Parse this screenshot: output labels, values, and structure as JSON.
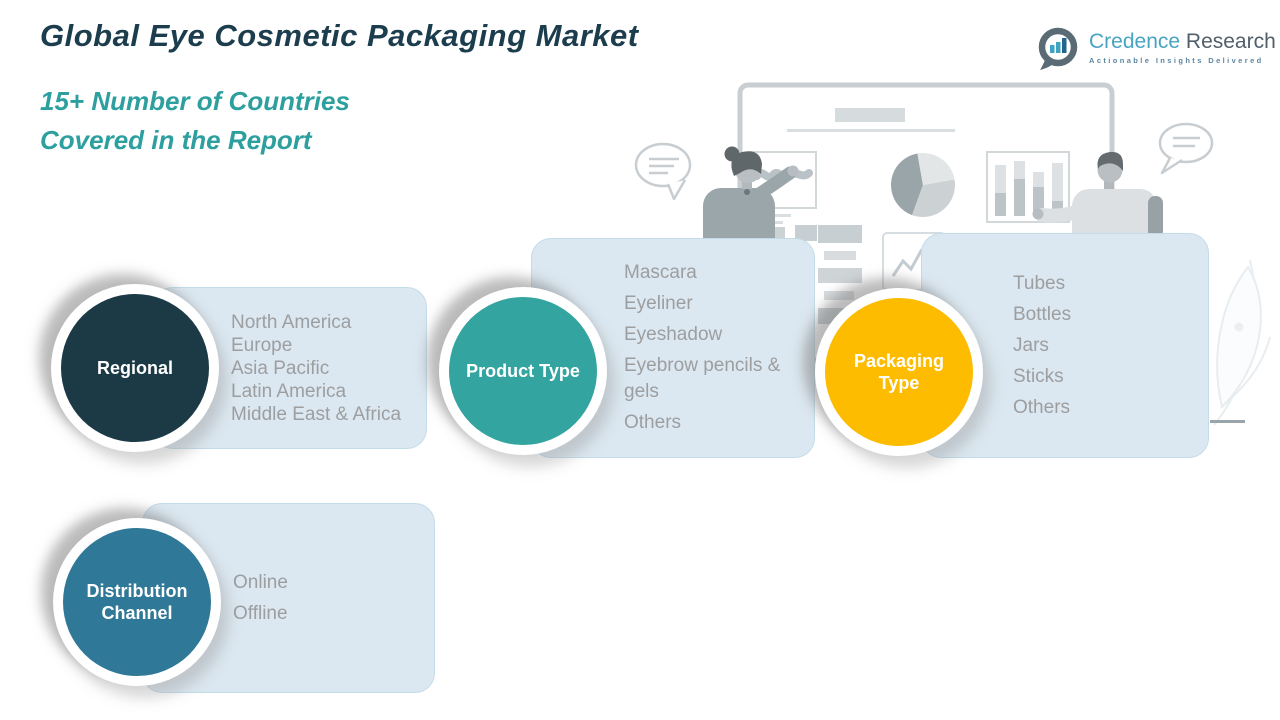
{
  "page": {
    "title": "Global Eye Cosmetic Packaging Market",
    "subtitle_line1": "15+ Number of Countries",
    "subtitle_line2": "Covered in the Report"
  },
  "logo": {
    "brand_primary": "Credence",
    "brand_secondary": "Research",
    "tagline": "Actionable Insights Delivered",
    "icon": "bar-chart-speech-bubble-icon"
  },
  "segments": [
    {
      "label": "Regional",
      "color": "#1b3a46",
      "items": [
        "North America",
        "Europe",
        "Asia Pacific",
        "Latin America",
        "Middle East & Africa"
      ]
    },
    {
      "label": "Product Type",
      "color": "#34a4a1",
      "items": [
        "Mascara",
        "Eyeliner",
        "Eyeshadow",
        "Eyebrow pencils & gels",
        "Others"
      ]
    },
    {
      "label": "Packaging Type",
      "color": "#fdbc00",
      "items": [
        "Tubes",
        "Bottles",
        "Jars",
        "Sticks",
        "Others"
      ]
    },
    {
      "label": "Distribution Channel",
      "color": "#2f7897",
      "items": [
        "Online",
        "Offline"
      ]
    }
  ],
  "colors": {
    "title_text": "#1c3d4d",
    "subtitle_text": "#2d9f9f",
    "card_background": "#dce8f1",
    "card_border": "#c3dcea",
    "list_text": "#9c9ea0",
    "circle_label_text": "#ffffff",
    "regional_circle": "#1b3a46",
    "product_circle": "#34a4a1",
    "packaging_circle": "#fdbc00",
    "distribution_circle": "#2f7897"
  }
}
